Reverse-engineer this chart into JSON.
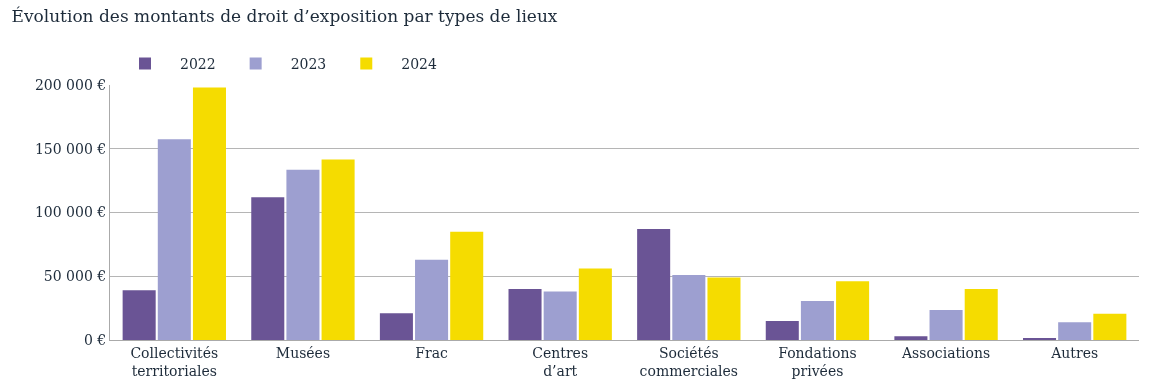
{
  "chart_data": {
    "type": "bar",
    "title": "Évolution des montants de droit d’exposition par types de lieux",
    "categories": [
      "Collectivités\nterritoriales",
      "Musées",
      "Frac",
      "Centres\nd’art",
      "Sociétés\ncommerciales",
      "Fondations\nprivées",
      "Associations",
      "Autres"
    ],
    "series": [
      {
        "name": "2022",
        "color": "#6a5495",
        "values": [
          39000,
          112000,
          21000,
          40000,
          87000,
          15000,
          3000,
          1500
        ]
      },
      {
        "name": "2023",
        "color": "#9d9fd0",
        "values": [
          157500,
          133500,
          63000,
          38000,
          51000,
          30500,
          23500,
          14000
        ]
      },
      {
        "name": "2024",
        "color": "#f5dc00",
        "values": [
          198000,
          141500,
          85000,
          56000,
          49000,
          46000,
          40000,
          20500
        ]
      }
    ],
    "ylim": [
      0,
      200000
    ],
    "yticks": [
      {
        "value": 0,
        "label": "0 €"
      },
      {
        "value": 50000,
        "label": "50 000 €"
      },
      {
        "value": 100000,
        "label": "100 000 €"
      },
      {
        "value": 150000,
        "label": "150 000 €"
      },
      {
        "value": 200000,
        "label": "200 000 €"
      }
    ],
    "grid": "y",
    "legend": "top left"
  }
}
